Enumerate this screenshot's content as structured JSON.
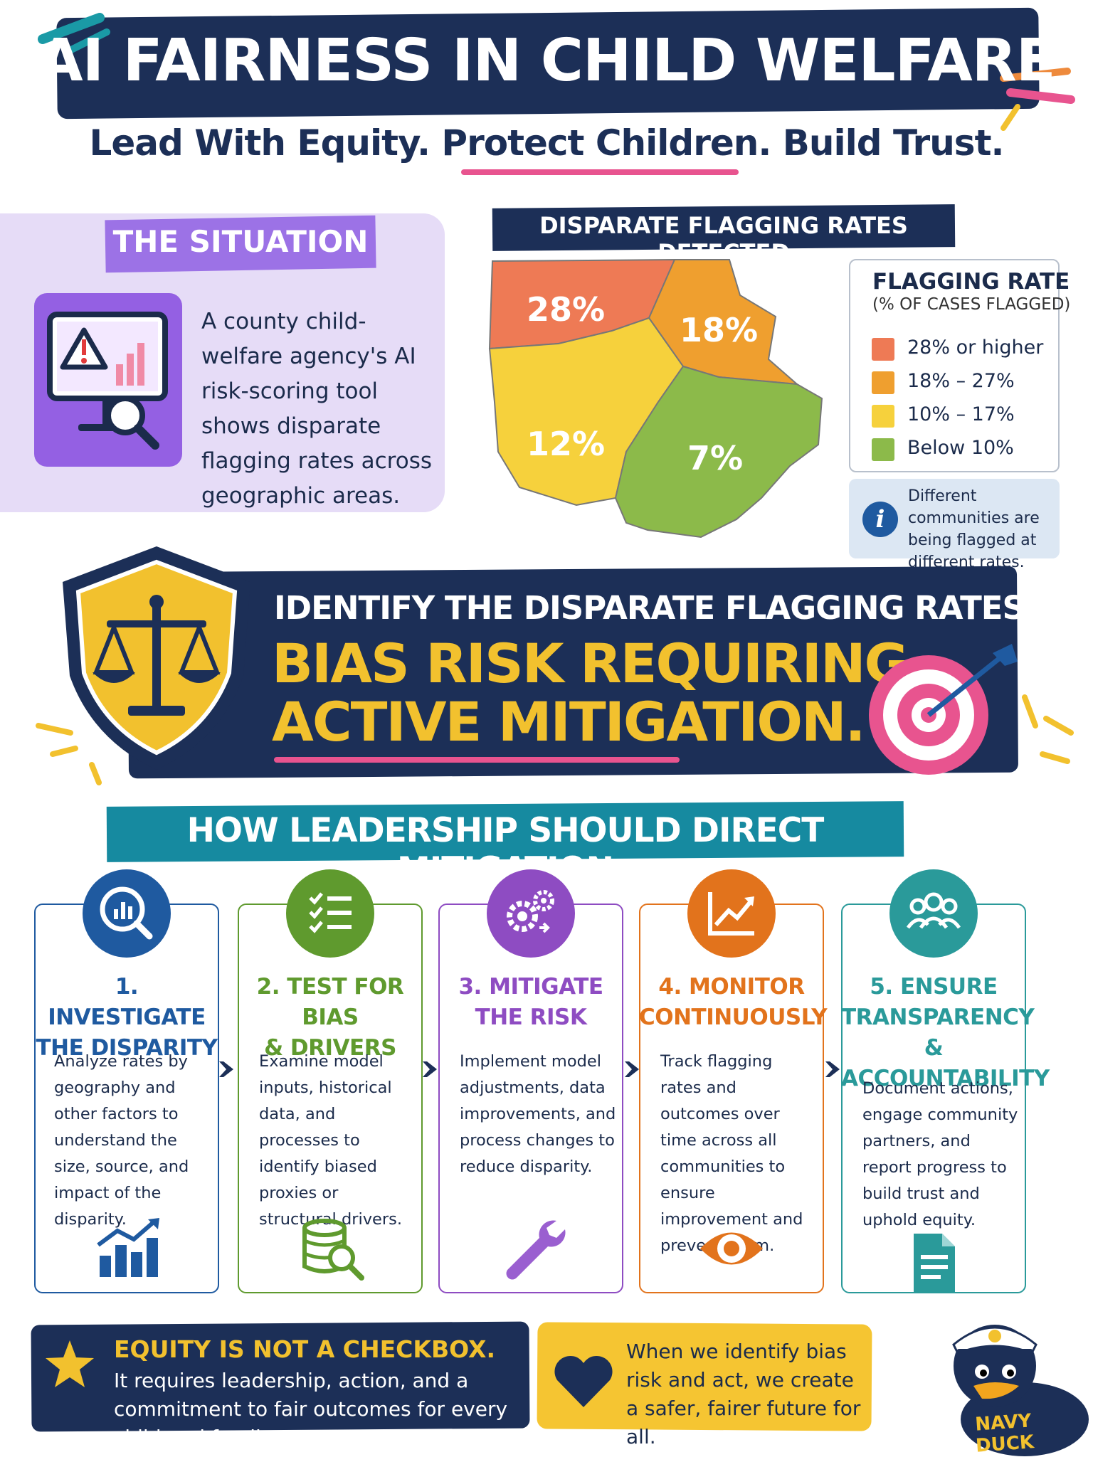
{
  "header": {
    "title": "AI FAIRNESS IN CHILD WELFARE",
    "subtitle": "Lead With Equity. Protect Children. Build Trust."
  },
  "situation": {
    "title": "THE SITUATION",
    "text": "A county child-welfare agency's AI risk-scoring tool shows disparate flagging rates across geographic areas.",
    "icon": "monitor-warning-icon"
  },
  "map": {
    "title": "DISPARATE FLAGGING RATES DETECTED",
    "regions": [
      {
        "label": "28%",
        "value": 28,
        "color": "#ee7a55"
      },
      {
        "label": "18%",
        "value": 18,
        "color": "#ef9f2f"
      },
      {
        "label": "12%",
        "value": 12,
        "color": "#f6d13c"
      },
      {
        "label": "7%",
        "value": 7,
        "color": "#8cba4a"
      }
    ],
    "legend": {
      "title": "FLAGGING RATE",
      "subtitle": "(% OF CASES FLAGGED)",
      "items": [
        {
          "label": "28% or higher",
          "color": "#ee7a55"
        },
        {
          "label": "18% – 27%",
          "color": "#ef9f2f"
        },
        {
          "label": "10% – 17%",
          "color": "#f6d13c"
        },
        {
          "label": "Below 10%",
          "color": "#8cba4a"
        }
      ]
    },
    "info": "Different communities are being flagged at different rates."
  },
  "banner": {
    "line1": "IDENTIFY THE DISPARATE FLAGGING RATES AS A",
    "line2": "BIAS RISK REQUIRING",
    "line3": "ACTIVE MITIGATION."
  },
  "leadership": {
    "title": "HOW LEADERSHIP SHOULD DIRECT MITIGATION",
    "steps": [
      {
        "title_1": "1. INVESTIGATE",
        "title_2": "THE DISPARITY",
        "title_3": "",
        "desc": "Analyze rates by geography and other factors to understand the size, source, and impact of the disparity.",
        "color": "#1f5aa0",
        "icon": "magnifier-chart-icon",
        "bottom_icon": "bar-chart-trend-icon"
      },
      {
        "title_1": "2. TEST FOR BIAS",
        "title_2": "& DRIVERS",
        "title_3": "",
        "desc": "Examine model inputs, historical data, and processes to identify biased proxies or structural drivers.",
        "color": "#5f9a2e",
        "icon": "checklist-icon",
        "bottom_icon": "database-search-icon"
      },
      {
        "title_1": "3. MITIGATE",
        "title_2": "THE RISK",
        "title_3": "",
        "desc": "Implement model adjustments, data improvements, and process changes to reduce disparity.",
        "color": "#8e4cc2",
        "icon": "gears-icon",
        "bottom_icon": "wrench-icon"
      },
      {
        "title_1": "4. MONITOR",
        "title_2": "CONTINUOUSLY",
        "title_3": "",
        "desc": "Track flagging rates and outcomes over time across all communities to ensure improvement and prevent harm.",
        "color": "#e2731c",
        "icon": "line-chart-icon",
        "bottom_icon": "eye-icon"
      },
      {
        "title_1": "5. ENSURE",
        "title_2": "TRANSPARENCY",
        "title_3": "& ACCOUNTABILITY",
        "desc": "Document actions, engage community partners, and report progress to build trust and uphold equity.",
        "color": "#2a9a9a",
        "icon": "people-group-icon",
        "bottom_icon": "document-icon"
      }
    ]
  },
  "footer": {
    "left_title": "EQUITY IS NOT A CHECKBOX.",
    "left_text": "It requires leadership, action, and a commitment to fair outcomes for every child and family.",
    "right_text": "When we identify bias risk and act, we create a safer, fairer future for all.",
    "mascot_label": "NAVY DUCK"
  }
}
